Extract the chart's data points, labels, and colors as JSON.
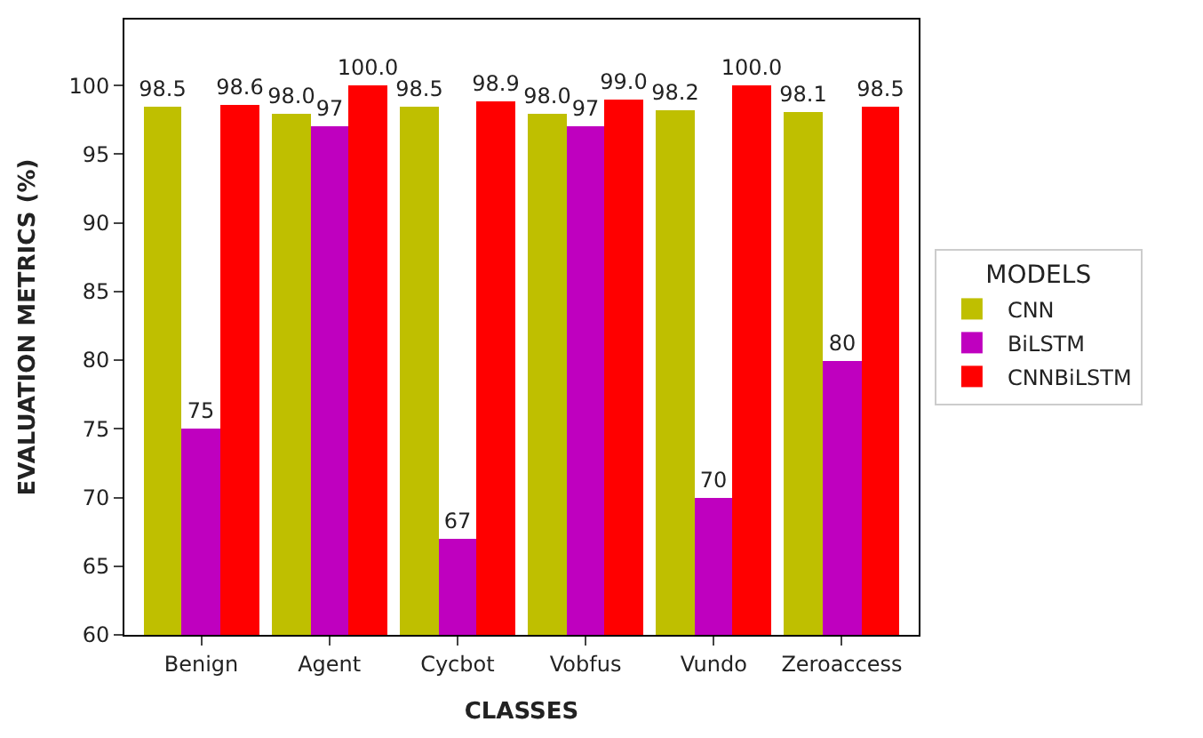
{
  "chart_data": {
    "type": "bar",
    "xlabel": "CLASSES",
    "ylabel": "EVALUATION METRICS (%)",
    "legend_title": "MODELS",
    "categories": [
      "Benign",
      "Agent",
      "Cycbot",
      "Vobfus",
      "Vundo",
      "Zeroaccess"
    ],
    "series": [
      {
        "name": "CNN",
        "color": "#bfbf00",
        "values": [
          98.5,
          98.0,
          98.5,
          98.0,
          98.2,
          98.1
        ],
        "value_labels": [
          "98.5",
          "98.0",
          "98.5",
          "98.0",
          "98.2",
          "98.1"
        ]
      },
      {
        "name": "BiLSTM",
        "color": "#bf00bf",
        "values": [
          75,
          97,
          67,
          97,
          70,
          80
        ],
        "value_labels": [
          "75",
          "97",
          "67",
          "97",
          "70",
          "80"
        ]
      },
      {
        "name": "CNNBiLSTM",
        "color": "#ff0000",
        "values": [
          98.6,
          100.0,
          98.9,
          99.0,
          100.0,
          98.5
        ],
        "value_labels": [
          "98.6",
          "100.0",
          "98.9",
          "99.0",
          "100.0",
          "98.5"
        ]
      }
    ],
    "ylim": [
      60,
      104.8
    ],
    "yticks": [
      60,
      65,
      70,
      75,
      80,
      85,
      90,
      95,
      100
    ],
    "legend": "right"
  }
}
